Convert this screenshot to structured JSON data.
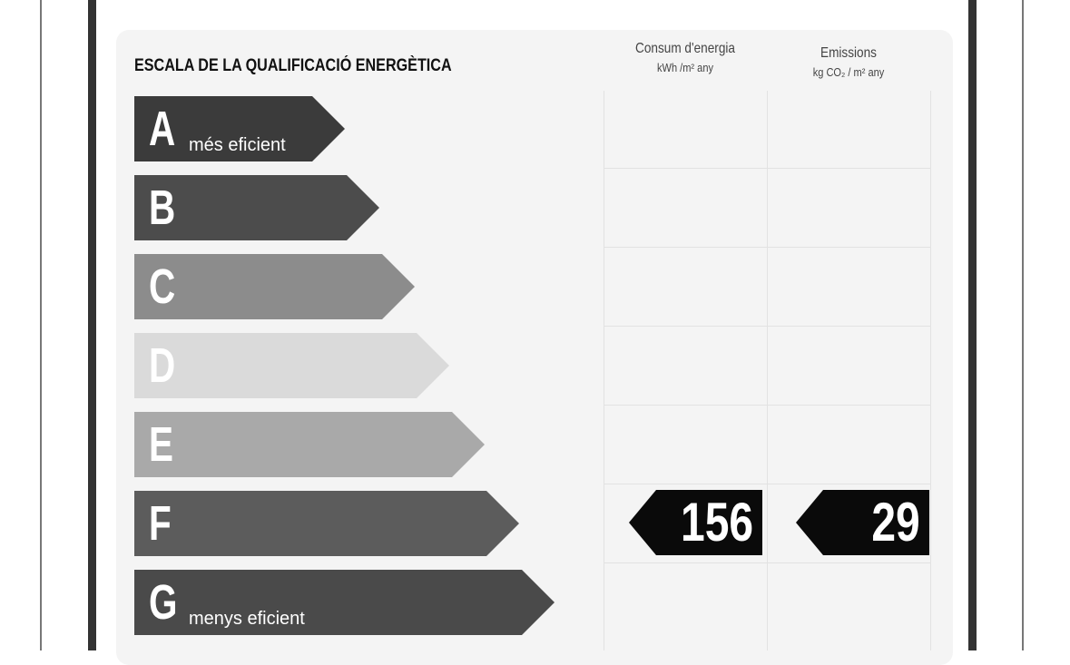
{
  "title": "ESCALA DE LA QUALIFICACIÓ ENERGÈTICA",
  "columns": {
    "energy": {
      "label": "Consum d'energia",
      "unit": "kWh /m² any"
    },
    "emissions": {
      "label": "Emissions",
      "unit": "kg CO₂ / m² any"
    }
  },
  "scale": [
    {
      "letter": "A",
      "caption": "més eficient",
      "color": "#3b3b3b"
    },
    {
      "letter": "B",
      "caption": "",
      "color": "#4c4c4c"
    },
    {
      "letter": "C",
      "caption": "",
      "color": "#8c8c8c"
    },
    {
      "letter": "D",
      "caption": "",
      "color": "#dadada"
    },
    {
      "letter": "E",
      "caption": "",
      "color": "#a9a9a9"
    },
    {
      "letter": "F",
      "caption": "",
      "color": "#5c5c5c"
    },
    {
      "letter": "G",
      "caption": "menys eficient",
      "color": "#4a4a4a"
    }
  ],
  "rating": {
    "class": "F",
    "energy_value": "156",
    "emissions_value": "29"
  }
}
